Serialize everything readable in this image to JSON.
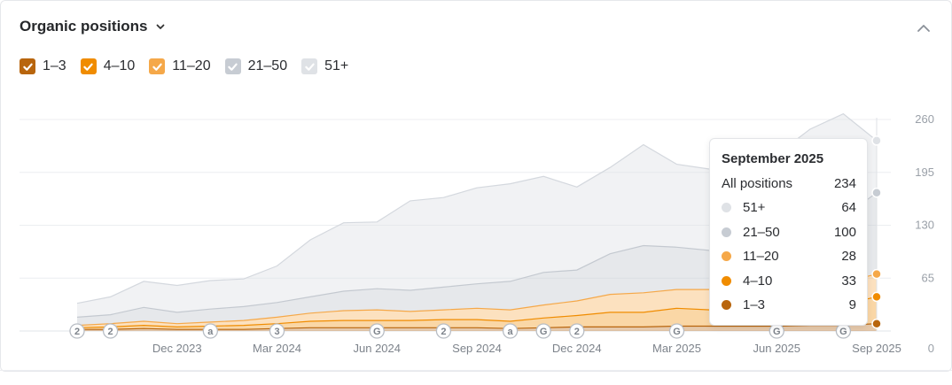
{
  "header": {
    "title": "Organic positions"
  },
  "legend": [
    {
      "label": "1–3",
      "color": "#b8650d",
      "checked": true
    },
    {
      "label": "4–10",
      "color": "#f08c00",
      "checked": true
    },
    {
      "label": "11–20",
      "color": "#f5a849",
      "checked": true
    },
    {
      "label": "21–50",
      "color": "#c7ccd3",
      "checked": true
    },
    {
      "label": "51+",
      "color": "#dfe2e6",
      "checked": true
    }
  ],
  "tooltip": {
    "title": "September 2025",
    "total_label": "All positions",
    "total_value": "234",
    "rows": [
      {
        "label": "51+",
        "value": "64",
        "color": "#dfe2e6"
      },
      {
        "label": "21–50",
        "value": "100",
        "color": "#c7ccd3"
      },
      {
        "label": "11–20",
        "value": "28",
        "color": "#f5a849"
      },
      {
        "label": "4–10",
        "value": "33",
        "color": "#f08c00"
      },
      {
        "label": "1–3",
        "value": "9",
        "color": "#b8650d"
      }
    ]
  },
  "chart_data": {
    "type": "area",
    "stacked": true,
    "x_start": "2023-09",
    "x": [
      "2023-09",
      "2023-10",
      "2023-11",
      "2023-12",
      "2024-01",
      "2024-02",
      "2024-03",
      "2024-04",
      "2024-05",
      "2024-06",
      "2024-07",
      "2024-08",
      "2024-09",
      "2024-10",
      "2024-11",
      "2024-12",
      "2025-01",
      "2025-02",
      "2025-03",
      "2025-04",
      "2025-05",
      "2025-06",
      "2025-07",
      "2025-08",
      "2025-09"
    ],
    "xtick_labels": [
      "Dec 2023",
      "Mar 2024",
      "Jun 2024",
      "Sep 2024",
      "Dec 2024",
      "Mar 2025",
      "Jun 2025",
      "Sep 2025"
    ],
    "ytick_labels": [
      "0",
      "65",
      "130",
      "195",
      "260"
    ],
    "ylim": [
      0,
      260
    ],
    "series": [
      {
        "name": "1–3",
        "color": "#b8650d",
        "values": [
          2,
          2,
          3,
          2,
          2,
          2,
          3,
          4,
          4,
          4,
          4,
          4,
          4,
          3,
          4,
          5,
          5,
          5,
          6,
          6,
          6,
          6,
          7,
          7,
          9
        ]
      },
      {
        "name": "4–10",
        "color": "#f08c00",
        "values": [
          2,
          3,
          4,
          3,
          4,
          5,
          6,
          8,
          9,
          9,
          9,
          10,
          10,
          9,
          12,
          14,
          18,
          18,
          22,
          20,
          21,
          22,
          24,
          26,
          33
        ]
      },
      {
        "name": "11–20",
        "color": "#f5a849",
        "values": [
          3,
          4,
          5,
          4,
          5,
          6,
          8,
          10,
          12,
          13,
          11,
          12,
          14,
          14,
          16,
          18,
          22,
          24,
          23,
          25,
          24,
          23,
          26,
          27,
          28
        ]
      },
      {
        "name": "21–50",
        "color": "#c7ccd3",
        "values": [
          10,
          11,
          17,
          14,
          16,
          17,
          18,
          20,
          24,
          26,
          26,
          28,
          30,
          35,
          40,
          38,
          50,
          58,
          52,
          48,
          50,
          55,
          70,
          80,
          100
        ]
      },
      {
        "name": "51+",
        "color": "#dfe2e6",
        "values": [
          17,
          22,
          32,
          33,
          35,
          34,
          45,
          70,
          84,
          82,
          110,
          110,
          118,
          120,
          118,
          102,
          106,
          124,
          102,
          100,
          90,
          111,
          121,
          127,
          64
        ]
      }
    ],
    "markers": [
      {
        "x": "2023-09",
        "label": "2"
      },
      {
        "x": "2023-10",
        "label": "2"
      },
      {
        "x": "2024-01",
        "label": "a"
      },
      {
        "x": "2024-03",
        "label": "3"
      },
      {
        "x": "2024-06",
        "label": "G"
      },
      {
        "x": "2024-08",
        "label": "2"
      },
      {
        "x": "2024-10",
        "label": "a"
      },
      {
        "x": "2024-11",
        "label": "G"
      },
      {
        "x": "2024-12",
        "label": "2"
      },
      {
        "x": "2025-03",
        "label": "G"
      },
      {
        "x": "2025-06",
        "label": "G"
      },
      {
        "x": "2025-08",
        "label": "G"
      }
    ]
  }
}
